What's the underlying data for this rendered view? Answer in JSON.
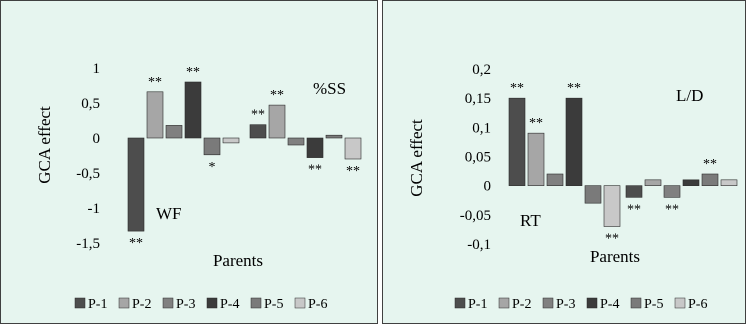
{
  "chart_data": [
    {
      "type": "bar",
      "ylabel": "GCA effect",
      "xlabel": "Parents",
      "ylim": [
        -1.5,
        1
      ],
      "yticks": [
        1,
        0.5,
        0,
        -0.5,
        -1,
        -1.5
      ],
      "ytick_labels": [
        "1",
        "0,5",
        "0",
        "-0,5",
        "-1",
        "-1,5"
      ],
      "groups": [
        {
          "label": "WF",
          "values": [
            -1.33,
            0.66,
            0.18,
            0.8,
            -0.24,
            -0.07
          ],
          "significance": [
            "**",
            "**",
            "",
            "**",
            "*",
            ""
          ]
        },
        {
          "label": "%SS",
          "values": [
            0.19,
            0.47,
            -0.1,
            -0.28,
            0.04,
            -0.3
          ],
          "significance": [
            "**",
            "**",
            "",
            "**",
            "",
            "**"
          ]
        }
      ],
      "legend": [
        "P-1",
        "P-2",
        "P-3",
        "P-4",
        "P-5",
        "P-6"
      ],
      "colors": [
        "#4d4d4d",
        "#a6a6a6",
        "#808080",
        "#3b3b3b",
        "#7a7a7a",
        "#c8c8c8"
      ],
      "legend_position": "bottom",
      "background": "#e6f5ef"
    },
    {
      "type": "bar",
      "ylabel": "GCA effect",
      "xlabel": "Parents",
      "ylim": [
        -0.1,
        0.2
      ],
      "yticks": [
        0.2,
        0.15,
        0.1,
        0.05,
        0,
        -0.05,
        -0.1
      ],
      "ytick_labels": [
        "0,2",
        "0,15",
        "0,1",
        "0,05",
        "0",
        "-0,05",
        "-0,1"
      ],
      "groups": [
        {
          "label": "RT",
          "values": [
            0.15,
            0.09,
            0.02,
            0.15,
            -0.03,
            -0.07
          ],
          "significance": [
            "**",
            "**",
            "",
            "**",
            "",
            "**"
          ]
        },
        {
          "label": "L/D",
          "values": [
            -0.02,
            0.01,
            -0.02,
            0.01,
            0.02,
            0.01
          ],
          "significance": [
            "**",
            "",
            "**",
            "",
            "**",
            ""
          ]
        }
      ],
      "legend": [
        "P-1",
        "P-2",
        "P-3",
        "P-4",
        "P-5",
        "P-6"
      ],
      "colors": [
        "#4d4d4d",
        "#a6a6a6",
        "#808080",
        "#3b3b3b",
        "#7a7a7a",
        "#c8c8c8"
      ],
      "legend_position": "bottom",
      "background": "#e6f5ef"
    }
  ]
}
